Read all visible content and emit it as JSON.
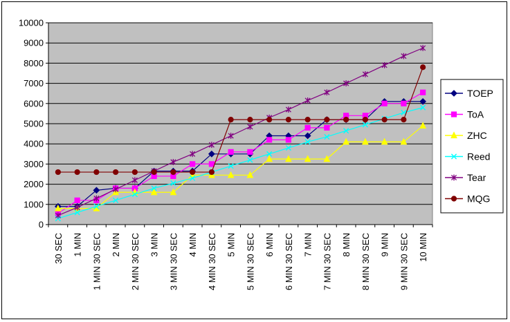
{
  "chart_data": {
    "type": "line",
    "categories": [
      "30 SEC",
      "1 MIN",
      "1 MIN 30 SEC",
      "2 MIN",
      "2 MIN 30 SEC",
      "3 MIN",
      "3 MIN 30 SEC",
      "4 MIN",
      "4 MIN 30 SEC",
      "5 MIN",
      "5 MIN 30 SEC",
      "6 MIN",
      "6 MIN 30 SEC",
      "7 MIN",
      "7 MIN 30 SEC",
      "8 MIN",
      "8 MIN 30 SEC",
      "9 MIN",
      "9 MIN 30 SEC",
      "10 MIN"
    ],
    "ylim": [
      0,
      10000
    ],
    "yticks": [
      0,
      1000,
      2000,
      3000,
      4000,
      5000,
      6000,
      7000,
      8000,
      9000,
      10000
    ],
    "grid": true,
    "legend_position": "right",
    "plot_background": "#c0c0c0",
    "series": [
      {
        "name": "TOEP",
        "color": "#000080",
        "marker": "diamond",
        "values": [
          900,
          900,
          1700,
          1800,
          1800,
          2650,
          2650,
          2650,
          3500,
          3500,
          3500,
          4400,
          4400,
          4400,
          5200,
          5200,
          5200,
          6100,
          6100,
          6100
        ]
      },
      {
        "name": "ToA",
        "color": "#ff00ff",
        "marker": "square",
        "values": [
          550,
          1200,
          1200,
          1800,
          1800,
          2400,
          2400,
          3000,
          3000,
          3600,
          3600,
          4200,
          4200,
          4800,
          4800,
          5400,
          5400,
          6000,
          6000,
          6550
        ]
      },
      {
        "name": "ZHC",
        "color": "#ffff00",
        "marker": "triangle",
        "values": [
          800,
          800,
          800,
          1600,
          1600,
          1600,
          1600,
          2450,
          2450,
          2450,
          2450,
          3250,
          3250,
          3250,
          3250,
          4100,
          4100,
          4100,
          4100,
          4900
        ]
      },
      {
        "name": "Reed",
        "color": "#00ffff",
        "marker": "x",
        "values": [
          300,
          600,
          900,
          1200,
          1500,
          1800,
          2050,
          2300,
          2600,
          2900,
          3200,
          3500,
          3800,
          4100,
          4350,
          4650,
          4950,
          5250,
          5550,
          5800
        ]
      },
      {
        "name": "Tear",
        "color": "#800080",
        "marker": "star",
        "values": [
          450,
          850,
          1300,
          1750,
          2200,
          2650,
          3100,
          3500,
          3950,
          4400,
          4850,
          5300,
          5700,
          6150,
          6550,
          7000,
          7450,
          7900,
          8350,
          8750
        ]
      },
      {
        "name": "MQG",
        "color": "#800000",
        "marker": "circle",
        "values": [
          2600,
          2600,
          2600,
          2600,
          2600,
          2600,
          2600,
          2600,
          2600,
          5200,
          5200,
          5200,
          5200,
          5200,
          5200,
          5200,
          5200,
          5200,
          5200,
          7800
        ]
      }
    ]
  }
}
